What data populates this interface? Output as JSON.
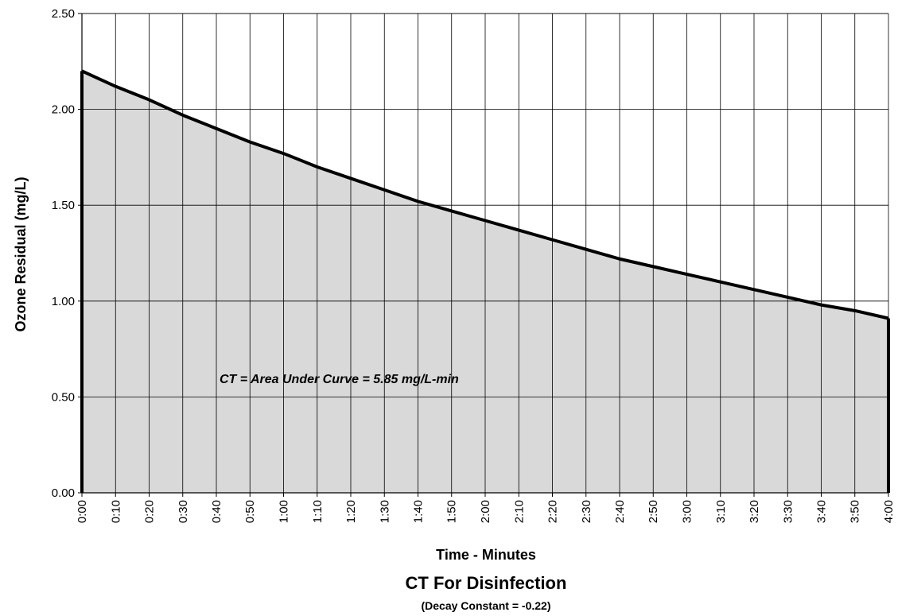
{
  "chart_data": {
    "type": "area",
    "title": "CT For Disinfection",
    "subtitle": "(Decay Constant = -0.22)",
    "xlabel": "Time - Minutes",
    "ylabel": "Ozone Residual (mg/L)",
    "annotation": "CT = Area Under Curve = 5.85 mg/L-min",
    "ylim": [
      0,
      2.5
    ],
    "y_ticks": [
      "0.00",
      "0.50",
      "1.00",
      "1.50",
      "2.00",
      "2.50"
    ],
    "x_tick_labels": [
      "0:00",
      "0:10",
      "0:20",
      "0:30",
      "0:40",
      "0:50",
      "1:00",
      "1:10",
      "1:20",
      "1:30",
      "1:40",
      "1:50",
      "2:00",
      "2:10",
      "2:20",
      "2:30",
      "2:40",
      "2:50",
      "3:00",
      "3:10",
      "3:20",
      "3:30",
      "3:40",
      "3:50",
      "4:00"
    ],
    "x_minutes": [
      0,
      0.1667,
      0.3333,
      0.5,
      0.6667,
      0.8333,
      1.0,
      1.1667,
      1.3333,
      1.5,
      1.6667,
      1.8333,
      2.0,
      2.1667,
      2.3333,
      2.5,
      2.6667,
      2.8333,
      3.0,
      3.1667,
      3.3333,
      3.5,
      3.6667,
      3.8333,
      4.0
    ],
    "series": [
      {
        "values": [
          2.2,
          2.12,
          2.05,
          1.97,
          1.9,
          1.83,
          1.77,
          1.7,
          1.64,
          1.58,
          1.52,
          1.47,
          1.42,
          1.37,
          1.32,
          1.27,
          1.22,
          1.18,
          1.14,
          1.1,
          1.06,
          1.02,
          0.98,
          0.95,
          0.91
        ]
      }
    ],
    "grid": true,
    "fill_color": "#d9d9d9",
    "line_color": "#000000"
  }
}
